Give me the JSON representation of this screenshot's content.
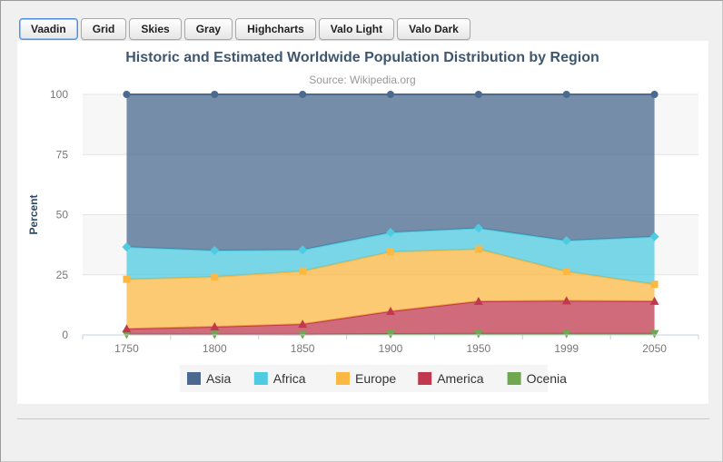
{
  "tabs": [
    "Vaadin",
    "Grid",
    "Skies",
    "Gray",
    "Highcharts",
    "Valo Light",
    "Valo Dark"
  ],
  "active_tab": 0,
  "chart_data": {
    "type": "area",
    "stacking": "percent",
    "title": "Historic and Estimated Worldwide Population Distribution by Region",
    "subtitle": "Source: Wikipedia.org",
    "xlabel": "",
    "ylabel": "Percent",
    "categories": [
      "1750",
      "1800",
      "1850",
      "1900",
      "1950",
      "1999",
      "2050"
    ],
    "yticks": [
      0,
      25,
      50,
      75,
      100
    ],
    "ylim": [
      0,
      100
    ],
    "grid": true,
    "legend_placement": "bottom-center",
    "series": [
      {
        "name": "Asia",
        "color": "#4a6a8f",
        "marker": "circle",
        "values": [
          502,
          635,
          809,
          947,
          1402,
          3634,
          5268
        ]
      },
      {
        "name": "Africa",
        "color": "#4ecbe0",
        "marker": "diamond",
        "values": [
          106,
          107,
          111,
          133,
          221,
          767,
          1766
        ]
      },
      {
        "name": "Europe",
        "color": "#fbb843",
        "marker": "square",
        "values": [
          163,
          203,
          276,
          408,
          547,
          729,
          628
        ]
      },
      {
        "name": "America",
        "color": "#c0394f",
        "marker": "triangle",
        "values": [
          18,
          31,
          54,
          156,
          339,
          818,
          1201
        ]
      },
      {
        "name": "Ocenia",
        "color": "#6fa84f",
        "marker": "triangle-down",
        "values": [
          2,
          2,
          2,
          6,
          13,
          30,
          46
        ]
      }
    ]
  }
}
